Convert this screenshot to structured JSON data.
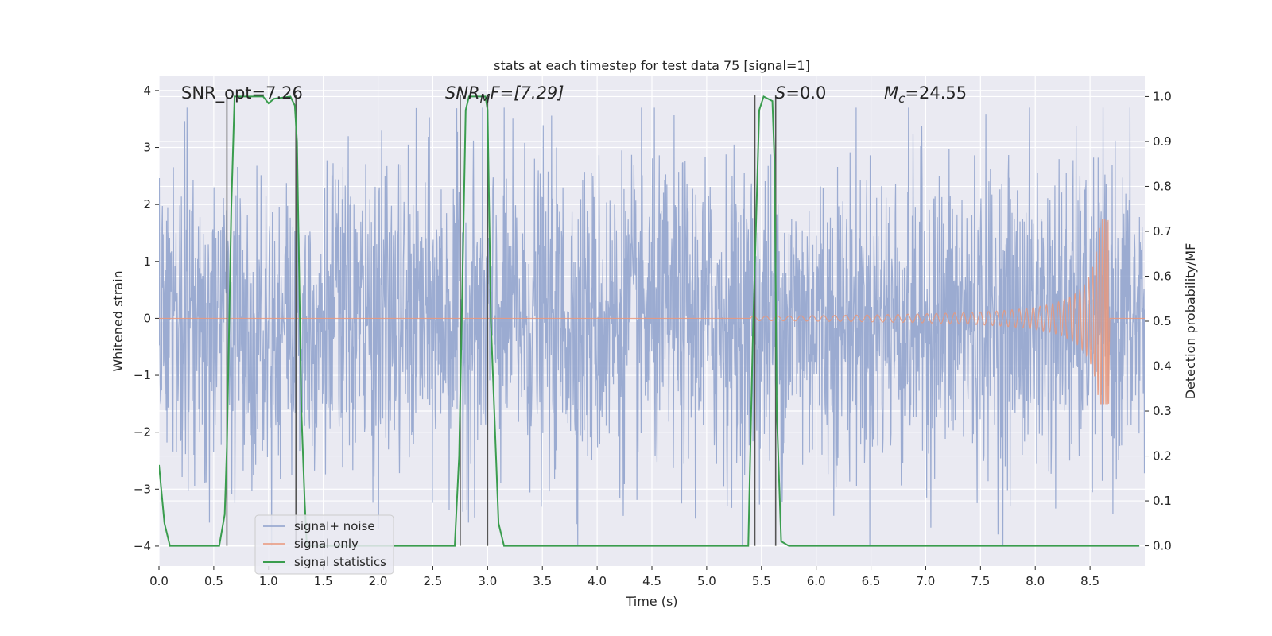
{
  "chart_data": {
    "type": "line",
    "title": "stats at each timestep for test data 75 [signal=1]",
    "xlabel": "Time (s)",
    "ylabel": "Whitened strain",
    "ylabel_right": "Detection probability/MF",
    "xlim": [
      0.0,
      9.0
    ],
    "ylim": [
      -4.35,
      4.25
    ],
    "ylim_right": [
      -0.045,
      1.045
    ],
    "x_ticks": [
      0.0,
      0.5,
      1.0,
      1.5,
      2.0,
      2.5,
      3.0,
      3.5,
      4.0,
      4.5,
      5.0,
      5.5,
      6.0,
      6.5,
      7.0,
      7.5,
      8.0,
      8.5
    ],
    "x_tick_labels": [
      "0.0",
      "0.5",
      "1.0",
      "1.5",
      "2.0",
      "2.5",
      "3.0",
      "3.5",
      "4.0",
      "4.5",
      "5.0",
      "5.5",
      "6.0",
      "6.5",
      "7.0",
      "7.5",
      "8.0",
      "8.5"
    ],
    "y_ticks": [
      4,
      3,
      2,
      1,
      0,
      -1,
      -2,
      -3,
      -4
    ],
    "y_tick_labels": [
      "4",
      "3",
      "2",
      "1",
      "0",
      "−1",
      "−2",
      "−3",
      "−4"
    ],
    "y_ticks_right": [
      1.0,
      0.9,
      0.8,
      0.7,
      0.6,
      0.5,
      0.4,
      0.3,
      0.2,
      0.1,
      0.0
    ],
    "y_tick_labels_right": [
      "1.0",
      "0.9",
      "0.8",
      "0.7",
      "0.6",
      "0.5",
      "0.4",
      "0.3",
      "0.2",
      "0.1",
      "0.0"
    ],
    "grid": true,
    "legend_position": "lower-left",
    "annotations": {
      "snr_opt": "SNR_opt=7.26",
      "snr_mf_main": "SNR",
      "snr_mf_sub": "M",
      "snr_mf_rest": "F=[7.29]",
      "s_main": "S",
      "s_rest": "=0.0",
      "mc_main": "M",
      "mc_sub": "c",
      "mc_rest": "=24.55"
    },
    "series": [
      {
        "name": "signal+ noise",
        "color": "#8da0cb",
        "description_values": "whitened noise samples, mostly within -2..2 with spikes up to about 3.7 and down to about -4",
        "envelope": {
          "typical": 1.6,
          "max_peak": 3.7,
          "min_peak": -4.0
        }
      },
      {
        "name": "signal only",
        "color": "#e9967a",
        "chirp": {
          "start_x": 5.4,
          "merger_x": 8.67,
          "peak_amplitude": 1.75,
          "min_amplitude": -1.5
        }
      },
      {
        "name": "signal statistics",
        "color": "#3a9d4e",
        "x": [
          0.0,
          0.05,
          0.1,
          0.55,
          0.6,
          0.62,
          0.66,
          0.69,
          0.75,
          0.95,
          1.0,
          1.05,
          1.2,
          1.24,
          1.26,
          1.28,
          1.3,
          1.33,
          1.35,
          1.9,
          2.0,
          2.7,
          2.74,
          2.8,
          2.83,
          2.98,
          3.0,
          3.03,
          3.1,
          3.15,
          5.38,
          5.42,
          5.48,
          5.52,
          5.6,
          5.62,
          5.64,
          5.68,
          5.75,
          8.95
        ],
        "y": [
          0.18,
          0.05,
          0.0,
          0.0,
          0.07,
          0.22,
          0.75,
          1.0,
          1.0,
          1.0,
          0.985,
          0.995,
          1.0,
          0.98,
          0.9,
          0.6,
          0.3,
          0.1,
          0.0,
          0.0,
          0.0,
          0.0,
          0.2,
          0.97,
          1.0,
          1.0,
          0.97,
          0.5,
          0.05,
          0.0,
          0.0,
          0.45,
          0.97,
          1.0,
          0.99,
          0.85,
          0.3,
          0.01,
          0.0,
          0.0
        ]
      }
    ],
    "vertical_lines_x": [
      0.62,
      1.25,
      2.75,
      3.0,
      5.44,
      5.63
    ]
  }
}
